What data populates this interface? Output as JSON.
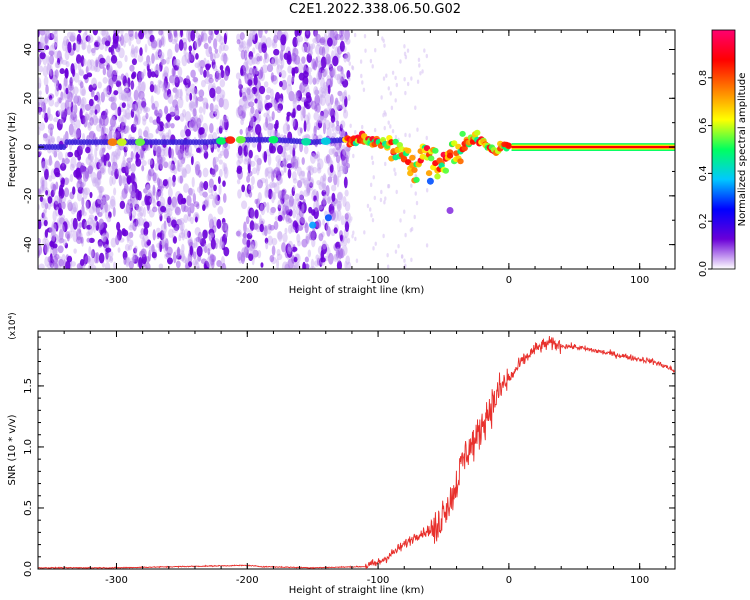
{
  "title": "C2E1.2022.338.06.50.G02",
  "chart_data": [
    {
      "type": "heatmap",
      "xlabel": "Height of straight line (km)",
      "ylabel": "Frequency (Hz)",
      "xlim": [
        -360,
        127
      ],
      "ylim": [
        -50,
        48
      ],
      "xticks": [
        -300,
        -200,
        -100,
        0,
        100
      ],
      "yticks": [
        -40,
        -20,
        0,
        20,
        40
      ],
      "colorbar": {
        "label": "Normalized spectral amplitude",
        "range": [
          0,
          1
        ],
        "ticks": [
          0.0,
          0.2,
          0.4,
          0.6,
          0.8
        ],
        "colors": [
          "#ffffff",
          "#6a00d8",
          "#0000ff",
          "#00c8ff",
          "#00ff60",
          "#ffff00",
          "#ff8000",
          "#ff0000",
          "#ff0070"
        ]
      },
      "ridge": {
        "x": [
          -340,
          -300,
          -280,
          -230,
          -210,
          -180,
          -150,
          -125,
          -110,
          -100,
          -90,
          -80,
          -75,
          -70,
          -65,
          -60,
          -55,
          -50,
          -45,
          -40,
          -35,
          -30,
          -25,
          -20,
          -15,
          -10,
          -5,
          0,
          127
        ],
        "y": [
          2,
          2,
          2,
          2,
          3,
          3,
          2,
          3,
          3,
          2,
          0,
          -4,
          -6,
          -8,
          -2,
          -5,
          -8,
          -6,
          -3,
          -2,
          0,
          2,
          4,
          2,
          0,
          -2,
          1,
          0,
          0
        ]
      }
    },
    {
      "type": "line",
      "xlabel": "Height of straight line (km)",
      "ylabel": "SNR (10 * v/v)",
      "y_multiplier": "(x10⁴)",
      "xlim": [
        -360,
        127
      ],
      "ylim": [
        0,
        1.95
      ],
      "xticks": [
        -300,
        -200,
        -100,
        0,
        100
      ],
      "yticks": [
        0.0,
        0.5,
        1.0,
        1.5
      ],
      "series": [
        {
          "color": "#e8302c",
          "x": [
            -360,
            -300,
            -250,
            -200,
            -190,
            -150,
            -110,
            -100,
            -90,
            -80,
            -70,
            -60,
            -55,
            -50,
            -45,
            -40,
            -35,
            -30,
            -25,
            -20,
            -15,
            -10,
            -5,
            0,
            10,
            20,
            30,
            40,
            50,
            60,
            70,
            80,
            90,
            100,
            110,
            120,
            127
          ],
          "y": [
            0.01,
            0.01,
            0.02,
            0.03,
            0.02,
            0.01,
            0.02,
            0.05,
            0.12,
            0.2,
            0.28,
            0.32,
            0.3,
            0.5,
            0.55,
            0.7,
            0.9,
            1.0,
            1.05,
            1.2,
            1.3,
            1.4,
            1.5,
            1.55,
            1.7,
            1.8,
            1.85,
            1.83,
            1.82,
            1.8,
            1.78,
            1.76,
            1.74,
            1.72,
            1.7,
            1.66,
            1.62
          ]
        }
      ]
    }
  ]
}
